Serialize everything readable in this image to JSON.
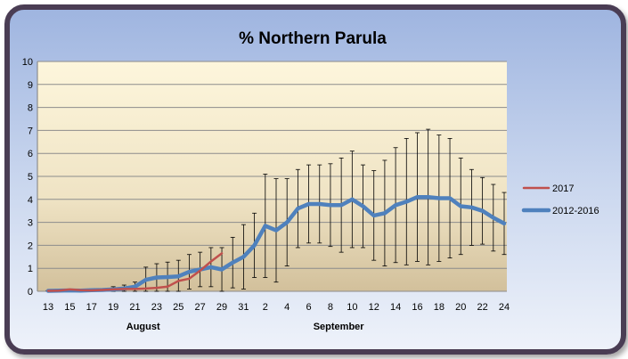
{
  "chart_data": {
    "type": "line",
    "title": "% Northern Parula",
    "xlabel": "",
    "ylabel": "",
    "ylim": [
      0,
      10
    ],
    "yticks": [
      "0",
      "1",
      "2",
      "3",
      "4",
      "5",
      "6",
      "7",
      "8",
      "9",
      "10"
    ],
    "x": [
      "13",
      "14",
      "15",
      "16",
      "17",
      "18",
      "19",
      "20",
      "21",
      "22",
      "23",
      "24",
      "25",
      "26",
      "27",
      "28",
      "29",
      "30",
      "31",
      "1",
      "2",
      "3",
      "4",
      "5",
      "6",
      "7",
      "8",
      "9",
      "10",
      "11",
      "12",
      "13",
      "14",
      "15",
      "16",
      "17",
      "18",
      "19",
      "20",
      "21",
      "22",
      "23",
      "24"
    ],
    "xtick_labels": [
      "13",
      "15",
      "17",
      "19",
      "21",
      "23",
      "25",
      "27",
      "29",
      "31",
      "2",
      "4",
      "6",
      "8",
      "10",
      "12",
      "14",
      "16",
      "18",
      "20",
      "22",
      "24"
    ],
    "month_labels": [
      "August",
      "September"
    ],
    "legend_position": "right",
    "series": [
      {
        "name": "2017",
        "color": "#c0504d",
        "values": [
          0.02,
          0.03,
          0.08,
          0.05,
          0.04,
          0.06,
          0.08,
          0.1,
          0.1,
          0.12,
          0.15,
          0.2,
          0.45,
          0.55,
          0.9,
          1.3,
          1.65,
          null,
          null,
          null,
          null,
          null,
          null,
          null,
          null,
          null,
          null,
          null,
          null,
          null,
          null,
          null,
          null,
          null,
          null,
          null,
          null,
          null,
          null,
          null,
          null,
          null,
          null
        ]
      },
      {
        "name": "2012-2016",
        "color": "#4f81bd",
        "values": [
          0.02,
          0.03,
          0.04,
          0.03,
          0.05,
          0.06,
          0.08,
          0.12,
          0.2,
          0.5,
          0.6,
          0.62,
          0.65,
          0.85,
          0.95,
          1.05,
          0.95,
          1.25,
          1.5,
          2.0,
          2.85,
          2.65,
          3.0,
          3.6,
          3.8,
          3.8,
          3.75,
          3.75,
          4.0,
          3.7,
          3.3,
          3.4,
          3.75,
          3.9,
          4.1,
          4.1,
          4.05,
          4.05,
          3.7,
          3.65,
          3.5,
          3.2,
          2.95
        ],
        "error": [
          0.01,
          0.02,
          0.03,
          0.03,
          0.05,
          0.06,
          0.12,
          0.15,
          0.2,
          0.55,
          0.6,
          0.65,
          0.7,
          0.75,
          0.75,
          0.85,
          0.95,
          1.1,
          1.4,
          1.4,
          2.25,
          2.25,
          1.9,
          1.7,
          1.7,
          1.7,
          1.8,
          2.05,
          2.1,
          1.8,
          1.95,
          2.3,
          2.5,
          2.75,
          2.8,
          2.95,
          2.75,
          2.6,
          2.1,
          1.65,
          1.45,
          1.45,
          1.35
        ]
      }
    ]
  }
}
